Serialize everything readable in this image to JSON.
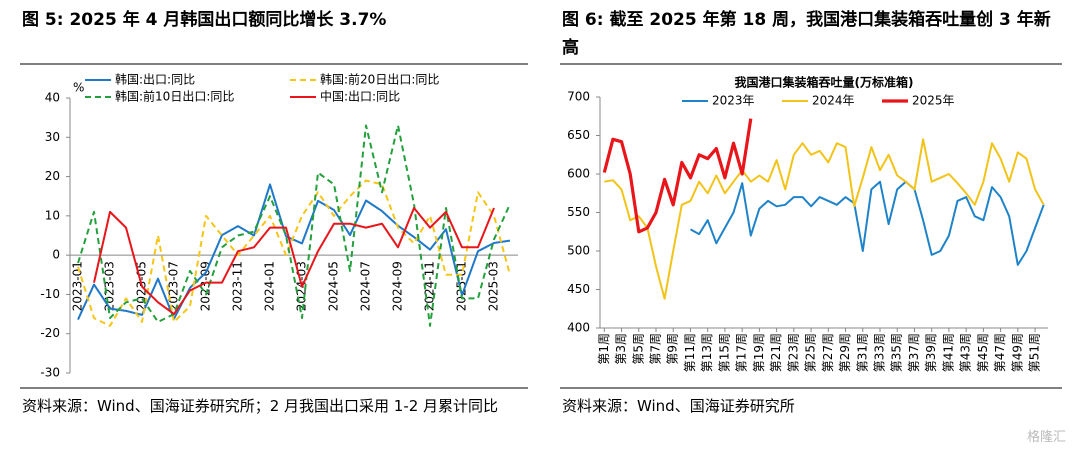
{
  "chart_data": [
    {
      "type": "line",
      "title": "图 5:  2025 年 4 月韩国出口额同比增长 3.7%",
      "ylabel": "%",
      "note": "资料来源：Wind、国海证券研究所；2 月我国出口采用 1-2 月累计同比",
      "categories": [
        "2023-01",
        null,
        "2023-03",
        null,
        "2023-05",
        null,
        "2023-07",
        null,
        "2023-09",
        null,
        "2023-11",
        null,
        "2024-01",
        null,
        "2024-03",
        null,
        "2024-05",
        null,
        "2024-07",
        null,
        "2024-09",
        null,
        "2024-11",
        null,
        "2025-01",
        null,
        "2025-03",
        null
      ],
      "series": [
        {
          "name": "韩国:出口:同比",
          "color": "#1f78c8",
          "style": "solid",
          "values": [
            -16.4,
            -7.5,
            -13.6,
            -14.2,
            -15.2,
            -6.0,
            -16.2,
            -8.3,
            -4.4,
            5.1,
            7.4,
            5.0,
            18.0,
            4.8,
            3.0,
            13.8,
            11.5,
            5.1,
            13.9,
            11.2,
            7.5,
            4.6,
            1.4,
            6.6,
            -10.2,
            1.0,
            3.1,
            3.7
          ]
        },
        {
          "name": "韩国:前20日出口:同比",
          "color": "#f5c518",
          "style": "dashed",
          "values": [
            -3,
            -16,
            -18,
            -11,
            -17,
            5,
            -17,
            -13,
            10,
            5,
            0,
            5,
            10,
            0,
            10,
            16,
            10,
            15,
            19,
            18,
            7,
            3,
            10,
            -5,
            -5,
            16,
            10,
            -5
          ]
        },
        {
          "name": "韩国:前10日出口:同比",
          "color": "#23a03c",
          "style": "dashed",
          "values": [
            -2,
            11,
            -16,
            -12,
            -11,
            -17,
            -15,
            -4,
            -10,
            2,
            5,
            6,
            15,
            5,
            -16,
            21,
            18,
            -4,
            33,
            16,
            33,
            13,
            -18,
            12,
            -11,
            -11,
            4,
            13
          ]
        },
        {
          "name": "中国:出口:同比",
          "color": "#e8161b",
          "style": "solid",
          "values": [
            null,
            -7,
            11,
            7,
            -8,
            -12,
            -15,
            -9,
            -7,
            -7,
            1,
            2,
            7,
            7,
            -8,
            1,
            8,
            8,
            7,
            8,
            2,
            12,
            7,
            11,
            2,
            2,
            12,
            null
          ]
        }
      ],
      "ylim": [
        -30,
        40
      ],
      "yticks": [
        -30,
        -20,
        -10,
        0,
        10,
        20,
        30,
        40
      ],
      "grid": false
    },
    {
      "type": "line",
      "title": "图 6:  截至 2025 年第 18 周，我国港口集装箱吞吐量创 3 年新高",
      "subtitle": "我国港口集装箱吞吐量(万标准箱)",
      "note": "资料来源：Wind、国海证券研究所",
      "categories": [
        "第1周",
        null,
        "第3周",
        null,
        "第5周",
        null,
        "第7周",
        null,
        "第9周",
        null,
        "第11周",
        null,
        "第13周",
        null,
        "第15周",
        null,
        "第17周",
        null,
        "第19周",
        null,
        "第21周",
        null,
        "第23周",
        null,
        "第25周",
        null,
        "第27周",
        null,
        "第29周",
        null,
        "第31周",
        null,
        "第33周",
        null,
        "第35周",
        null,
        "第37周",
        null,
        "第39周",
        null,
        "第41周",
        null,
        "第43周",
        null,
        "第45周",
        null,
        "第47周",
        null,
        "第49周",
        null,
        "第51周",
        null
      ],
      "series": [
        {
          "name": "2023年",
          "color": "#1f83c9",
          "style": "solid",
          "values": [
            null,
            null,
            null,
            null,
            null,
            null,
            null,
            null,
            null,
            null,
            528,
            522,
            540,
            510,
            530,
            550,
            588,
            520,
            555,
            565,
            558,
            560,
            570,
            570,
            558,
            570,
            565,
            560,
            570,
            562,
            500,
            580,
            590,
            535,
            580,
            590,
            580,
            540,
            495,
            500,
            520,
            565,
            570,
            545,
            540,
            583,
            570,
            545,
            482,
            500,
            530,
            560
          ]
        },
        {
          "name": "2024年",
          "color": "#f2c318",
          "style": "solid",
          "values": [
            590,
            592,
            580,
            540,
            545,
            530,
            480,
            438,
            500,
            560,
            565,
            590,
            575,
            598,
            575,
            590,
            605,
            590,
            598,
            590,
            618,
            580,
            625,
            640,
            625,
            630,
            615,
            640,
            635,
            558,
            595,
            635,
            605,
            625,
            598,
            590,
            580,
            645,
            590,
            595,
            600,
            588,
            575,
            560,
            590,
            640,
            620,
            590,
            628,
            620,
            580,
            560
          ]
        },
        {
          "name": "2025年",
          "color": "#e8161b",
          "style": "thick",
          "values": [
            602,
            645,
            642,
            600,
            525,
            530,
            550,
            593,
            560,
            615,
            595,
            625,
            620,
            633,
            595,
            640,
            600,
            672,
            null,
            null,
            null,
            null,
            null,
            null,
            null,
            null,
            null,
            null,
            null,
            null,
            null,
            null,
            null,
            null,
            null,
            null,
            null,
            null,
            null,
            null,
            null,
            null,
            null,
            null,
            null,
            null,
            null,
            null,
            null,
            null,
            null,
            null
          ]
        }
      ],
      "ylim": [
        400,
        700
      ],
      "yticks": [
        400,
        450,
        500,
        550,
        600,
        650,
        700
      ],
      "grid": false
    }
  ],
  "watermark": "格隆汇"
}
